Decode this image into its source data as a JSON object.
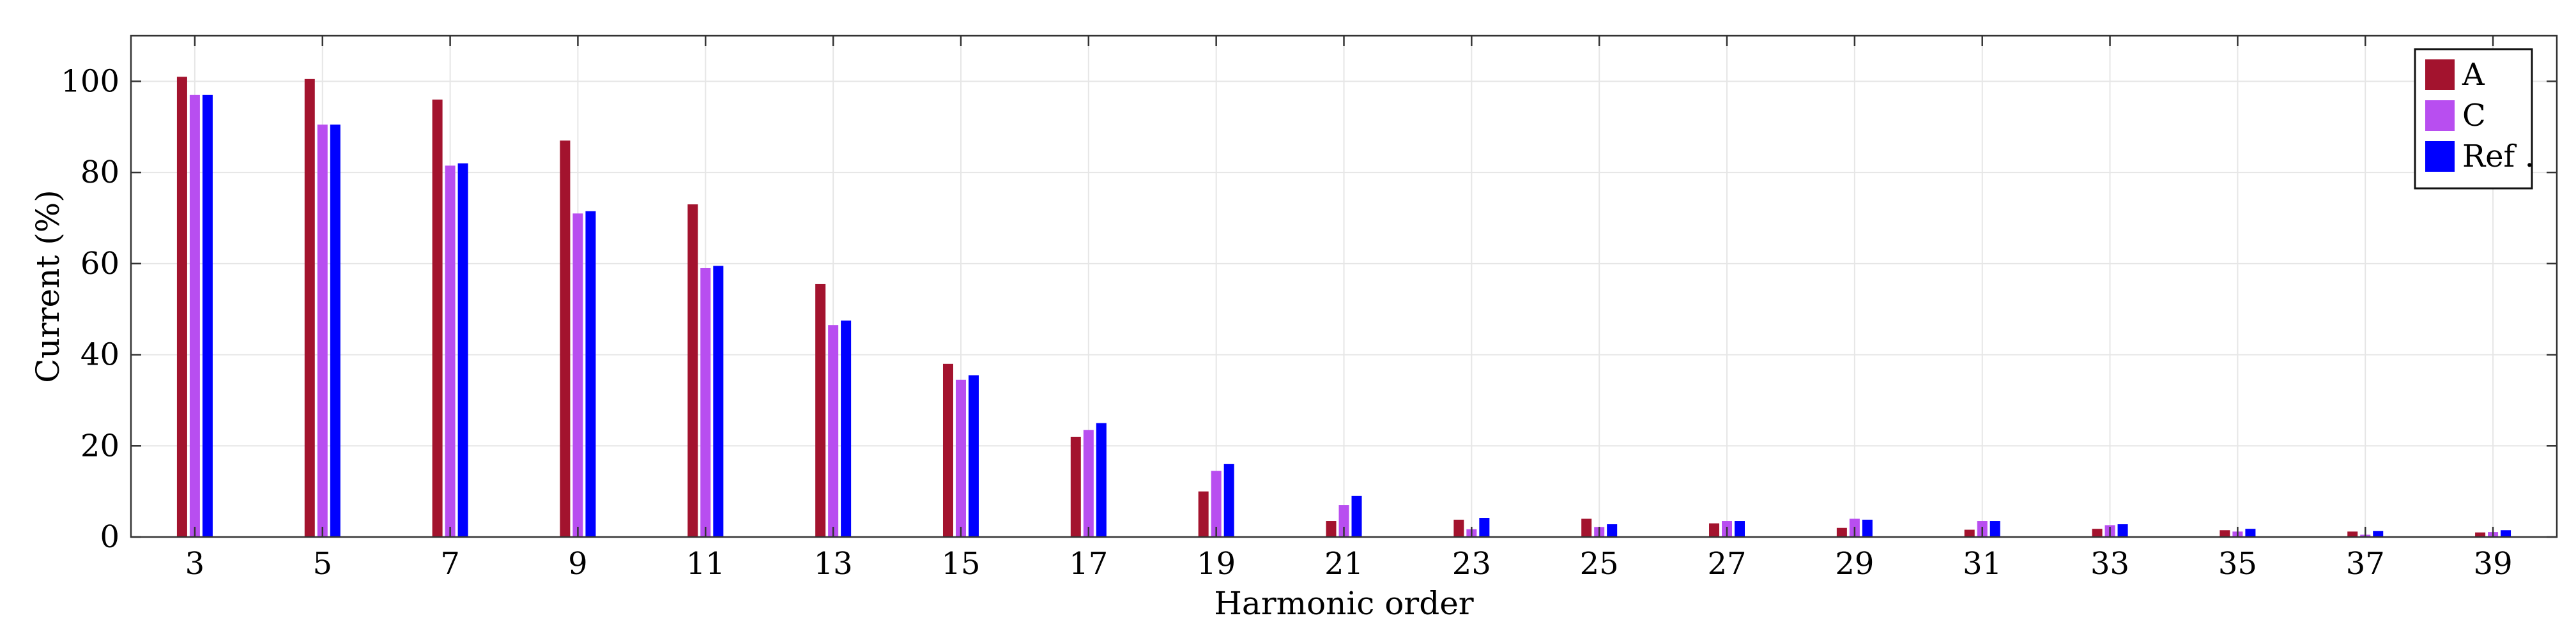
{
  "chart_data": {
    "type": "bar",
    "title": "",
    "xlabel": "Harmonic order",
    "ylabel": "Current (%)",
    "ylim": [
      0,
      110
    ],
    "yticks": [
      0,
      20,
      40,
      60,
      80,
      100
    ],
    "grid": true,
    "legend_position": "top-right",
    "categories": [
      "3",
      "5",
      "7",
      "9",
      "11",
      "13",
      "15",
      "17",
      "19",
      "21",
      "23",
      "25",
      "27",
      "29",
      "31",
      "33",
      "35",
      "37",
      "39"
    ],
    "series": [
      {
        "name": "A",
        "color": "#a3132e",
        "values": [
          101,
          100.5,
          96,
          87,
          73,
          55.5,
          38,
          22,
          10,
          3.5,
          3.8,
          4,
          3,
          2,
          1.6,
          1.8,
          1.5,
          1.2,
          1.0
        ]
      },
      {
        "name": "C",
        "color": "#b84ef0",
        "values": [
          97,
          90.5,
          81.5,
          71,
          59,
          46.5,
          34.5,
          23.5,
          14.5,
          7,
          1.7,
          2.2,
          3.5,
          4,
          3.5,
          2.6,
          1.2,
          0.5,
          1.1
        ]
      },
      {
        "name": "Ref .",
        "color": "#0000ff",
        "values": [
          97,
          90.5,
          82,
          71.5,
          59.5,
          47.5,
          35.5,
          25,
          16,
          9,
          4.2,
          2.8,
          3.5,
          3.8,
          3.5,
          2.8,
          1.8,
          1.3,
          1.5
        ]
      }
    ]
  }
}
